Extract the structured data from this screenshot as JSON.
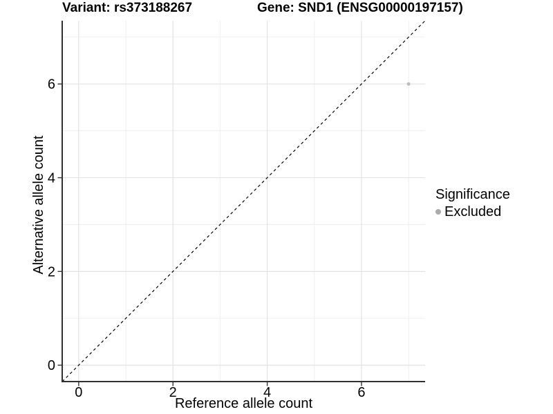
{
  "chart_data": {
    "type": "scatter",
    "titles": {
      "variant": "Variant: rs373188267",
      "gene": "Gene: SND1 (ENSG00000197157)"
    },
    "xlabel": "Reference allele count",
    "ylabel": "Alternative allele count",
    "xlim": [
      -0.35,
      7.35
    ],
    "ylim": [
      -0.35,
      7.35
    ],
    "x_major_ticks": [
      0,
      2,
      4,
      6
    ],
    "y_major_ticks": [
      0,
      2,
      4,
      6
    ],
    "x_minor_ticks": [
      1,
      3,
      5,
      7
    ],
    "y_minor_ticks": [
      1,
      3,
      5,
      7
    ],
    "grid": "major+minor",
    "identity_line": {
      "style": "dashed",
      "slope": 1,
      "intercept": 0,
      "color": "#000000"
    },
    "series": [
      {
        "name": "Excluded",
        "color": "#bdbdbd",
        "points": [
          {
            "x": 7,
            "y": 6
          }
        ]
      }
    ],
    "legend": {
      "title": "Significance",
      "position": "right",
      "entries": [
        {
          "label": "Excluded",
          "color": "#ababab"
        }
      ]
    }
  },
  "colors": {
    "background": "#ffffff",
    "grid_major": "#e3e3e3",
    "grid_minor": "#efefef",
    "axis_line": "#2f2f2f",
    "tick_mark": "#333333",
    "text": "#000000"
  }
}
